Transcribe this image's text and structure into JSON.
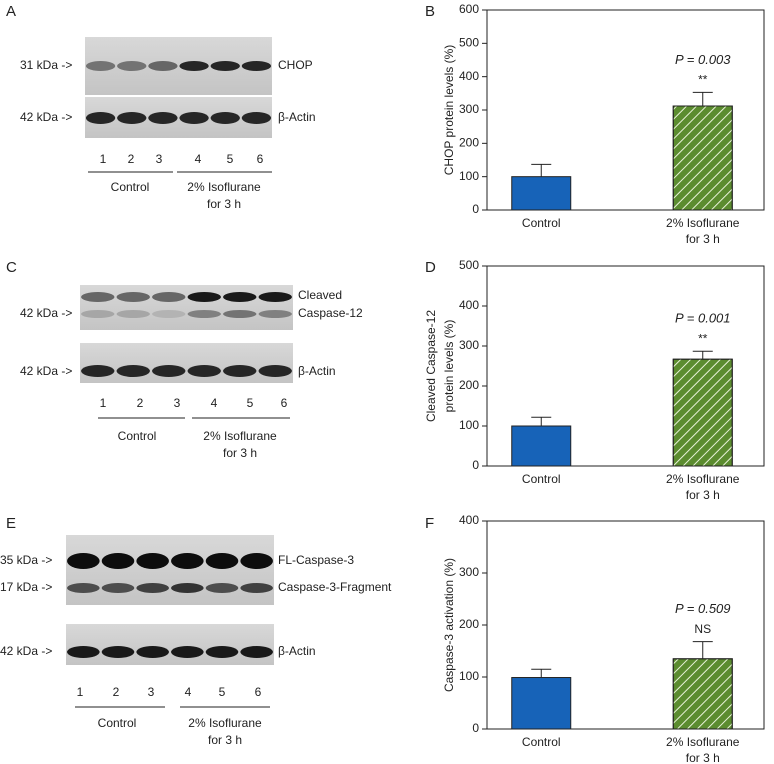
{
  "blots": [
    {
      "letter": "A",
      "rows": [
        {
          "marker": "31 kDa ->",
          "label": [
            "CHOP"
          ]
        },
        {
          "marker": "42 kDa ->",
          "label": [
            "β-Actin"
          ]
        }
      ],
      "lanes": [
        "1",
        "2",
        "3",
        "4",
        "5",
        "6"
      ],
      "groups": [
        [
          "Control"
        ],
        [
          "2% Isoflurane",
          "for 3 h"
        ]
      ]
    },
    {
      "letter": "C",
      "rows": [
        {
          "marker": "42 kDa ->",
          "label": [
            "Cleaved",
            "Caspase-12"
          ]
        },
        {
          "marker": "42 kDa ->",
          "label": [
            "β-Actin"
          ]
        }
      ],
      "lanes": [
        "1",
        "2",
        "3",
        "4",
        "5",
        "6"
      ],
      "groups": [
        [
          "Control"
        ],
        [
          "2% Isoflurane",
          "for 3 h"
        ]
      ]
    },
    {
      "letter": "E",
      "rows": [
        {
          "marker": "35 kDa ->",
          "label": [
            "FL-Caspase-3"
          ]
        },
        {
          "marker": "17 kDa ->",
          "label": [
            "Caspase-3-Fragment"
          ]
        },
        {
          "marker": "42 kDa ->",
          "label": [
            "β-Actin"
          ]
        }
      ],
      "lanes": [
        "1",
        "2",
        "3",
        "4",
        "5",
        "6"
      ],
      "groups": [
        [
          "Control"
        ],
        [
          "2% Isoflurane",
          "for 3 h"
        ]
      ]
    }
  ],
  "chart_data": [
    {
      "type": "bar",
      "letter": "B",
      "ylabel": [
        "CHOP protein levels (%)"
      ],
      "categories": [
        [
          "Control"
        ],
        [
          "2% Isoflurane",
          "for 3 h"
        ]
      ],
      "values": [
        100,
        312
      ],
      "errors": [
        37,
        41
      ],
      "colors": [
        "#1763b8",
        "#5b8c2f"
      ],
      "hatch": [
        false,
        true
      ],
      "annotations": [
        null,
        [
          "P = 0.003",
          "**"
        ]
      ],
      "ylim": [
        0,
        600
      ],
      "yticks": [
        0,
        100,
        200,
        300,
        400,
        500,
        600
      ]
    },
    {
      "type": "bar",
      "letter": "D",
      "ylabel": [
        "Cleaved Caspase-12",
        "protein levels (%)"
      ],
      "categories": [
        [
          "Control"
        ],
        [
          "2% Isoflurane",
          "for 3 h"
        ]
      ],
      "values": [
        100,
        267
      ],
      "errors": [
        22,
        20
      ],
      "colors": [
        "#1763b8",
        "#5b8c2f"
      ],
      "hatch": [
        false,
        true
      ],
      "annotations": [
        null,
        [
          "P = 0.001",
          "**"
        ]
      ],
      "ylim": [
        0,
        500
      ],
      "yticks": [
        0,
        100,
        200,
        300,
        400,
        500
      ]
    },
    {
      "type": "bar",
      "letter": "F",
      "ylabel": [
        "Caspase-3 activation (%)"
      ],
      "categories": [
        [
          "Control"
        ],
        [
          "2% Isoflurane",
          "for 3 h"
        ]
      ],
      "values": [
        99,
        135
      ],
      "errors": [
        16,
        33
      ],
      "colors": [
        "#1763b8",
        "#5b8c2f"
      ],
      "hatch": [
        false,
        true
      ],
      "annotations": [
        null,
        [
          "P = 0.509",
          "NS"
        ]
      ],
      "ylim": [
        0,
        400
      ],
      "yticks": [
        0,
        100,
        200,
        300,
        400
      ]
    }
  ]
}
